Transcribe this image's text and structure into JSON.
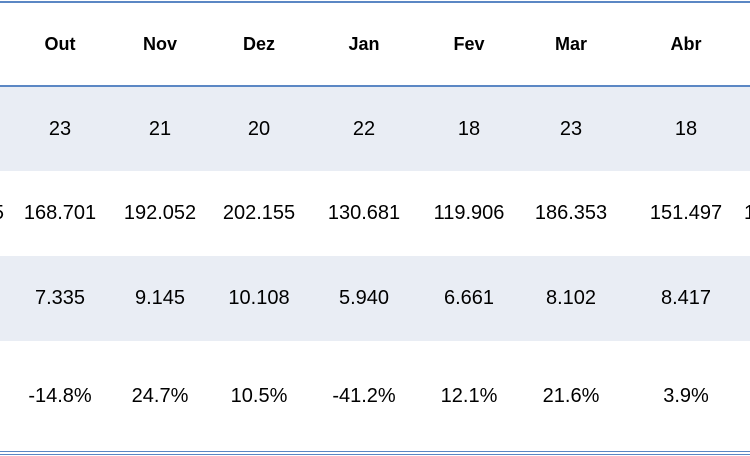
{
  "colors": {
    "border": "#5b87c4",
    "row_shade": "#e9edf4"
  },
  "table": {
    "headers": [
      "Out",
      "Nov",
      "Dez",
      "Jan",
      "Fev",
      "Mar",
      "Abr"
    ],
    "rows": [
      {
        "values": [
          "23",
          "21",
          "20",
          "22",
          "18",
          "23",
          "18"
        ]
      },
      {
        "values": [
          "168.701",
          "192.052",
          "202.155",
          "130.681",
          "119.906",
          "186.353",
          "151.497"
        ],
        "clipped_left": "5",
        "clipped_right": "1"
      },
      {
        "values": [
          "7.335",
          "9.145",
          "10.108",
          "5.940",
          "6.661",
          "8.102",
          "8.417"
        ]
      },
      {
        "values": [
          "-14.8%",
          "24.7%",
          "10.5%",
          "-41.2%",
          "12.1%",
          "21.6%",
          "3.9%"
        ]
      }
    ]
  }
}
